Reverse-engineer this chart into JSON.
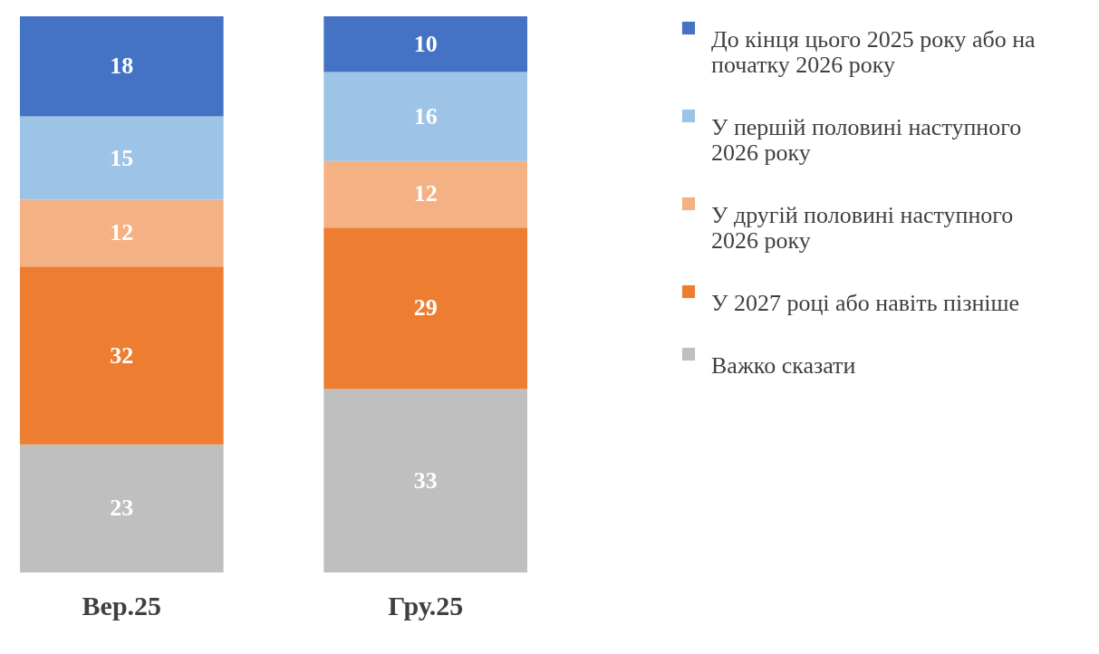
{
  "chart_data": {
    "type": "bar",
    "stacked": true,
    "categories": [
      "Вер.25",
      "Гру.25"
    ],
    "series": [
      {
        "name": "Важко сказати",
        "color": "#bfbfbf",
        "values": [
          23,
          33
        ]
      },
      {
        "name": "У 2027 році або навіть пізніше",
        "color": "#ed7d31",
        "values": [
          32,
          29
        ]
      },
      {
        "name": "У другій половині наступного 2026 року",
        "color": "#f4b183",
        "values": [
          12,
          12
        ]
      },
      {
        "name": "У першій половині наступного 2026 року",
        "color": "#9dc3e6",
        "values": [
          15,
          16
        ]
      },
      {
        "name": "До кінця цього 2025 року або на початку 2026 року",
        "color": "#4472c4",
        "values": [
          18,
          10
        ]
      }
    ],
    "data_labels": true,
    "legend": "right",
    "tick_labels": "x"
  }
}
